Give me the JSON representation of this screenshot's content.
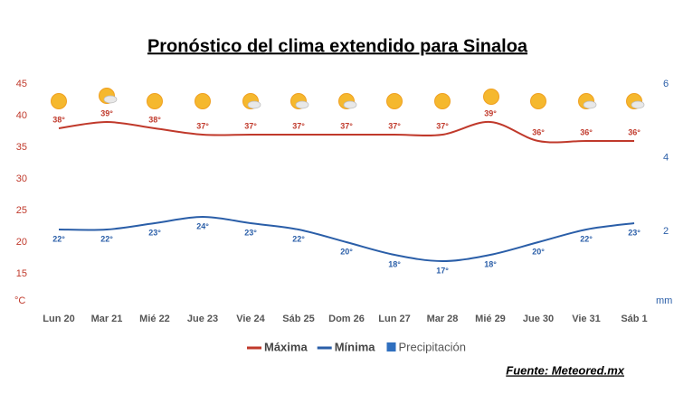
{
  "chart_data": {
    "type": "line",
    "title": "Pronóstico del clima extendido para Sinaloa",
    "source": "Fuente: Meteored.mx",
    "categories": [
      "Lun 20",
      "Mar 21",
      "Mié 22",
      "Jue 23",
      "Vie 24",
      "Sáb 25",
      "Dom 26",
      "Lun 27",
      "Mar 28",
      "Mié 29",
      "Jue 30",
      "Vie 31",
      "Sáb 1"
    ],
    "series": [
      {
        "name": "Máxima",
        "color": "#c0392b",
        "values": [
          38,
          39,
          38,
          37,
          37,
          37,
          37,
          37,
          37,
          39,
          36,
          36,
          36
        ],
        "value_labels": [
          "38°",
          "39°",
          "38°",
          "37°",
          "37°",
          "37°",
          "37°",
          "37°",
          "37°",
          "39°",
          "36°",
          "36°",
          "36°"
        ]
      },
      {
        "name": "Mínima",
        "color": "#2a5ea8",
        "values": [
          22,
          22,
          23,
          24,
          23,
          22,
          20,
          18,
          17,
          18,
          20,
          22,
          23
        ],
        "value_labels": [
          "22°",
          "22°",
          "23°",
          "24°",
          "23°",
          "22°",
          "20°",
          "18°",
          "17°",
          "18°",
          "20°",
          "22°",
          "23°"
        ]
      },
      {
        "name": "Precipitación",
        "color": "#2f6fbf",
        "axis": "y2",
        "values": [
          null,
          null,
          null,
          null,
          null,
          null,
          null,
          null,
          null,
          null,
          null,
          null,
          null
        ]
      }
    ],
    "ylim": [
      10,
      45
    ],
    "yticks": [
      15,
      20,
      25,
      30,
      35,
      40,
      45
    ],
    "y_unit": "°C",
    "y2lim": [
      0,
      6
    ],
    "y2ticks": [
      2,
      4,
      6
    ],
    "y2_unit": "mm",
    "grid": false
  }
}
